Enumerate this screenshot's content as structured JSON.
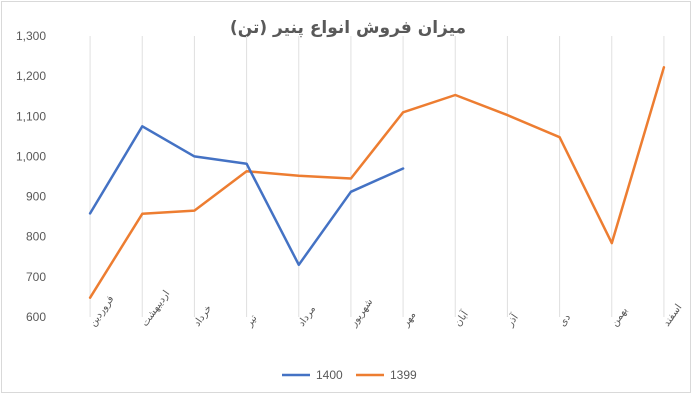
{
  "chart_data": {
    "type": "line",
    "title": "میزان فروش انواع پنیر (تن)",
    "categories": [
      "فروردین",
      "اردیبهشت",
      "خرداد",
      "تیر",
      "مرداد",
      "شهریور",
      "مهر",
      "آبان",
      "آذر",
      "دی",
      "بهمن",
      "اسفند"
    ],
    "series": [
      {
        "name": "1400",
        "color": "#4472c4",
        "values": [
          858,
          1075,
          1000,
          982,
          730,
          912,
          970,
          null,
          null,
          null,
          null,
          null
        ]
      },
      {
        "name": "1399",
        "color": "#ed7d31",
        "values": [
          648,
          857,
          865,
          963,
          952,
          945,
          1110,
          1153,
          1103,
          1048,
          784,
          1222
        ]
      }
    ],
    "ylim": [
      600,
      1300
    ],
    "yticks": [
      "600",
      "700",
      "800",
      "900",
      "1,000",
      "1,100",
      "1,200",
      "1,300"
    ],
    "ytick_values": [
      600,
      700,
      800,
      900,
      1000,
      1100,
      1200,
      1300
    ],
    "grid": "vertical",
    "legend": "bottom"
  }
}
